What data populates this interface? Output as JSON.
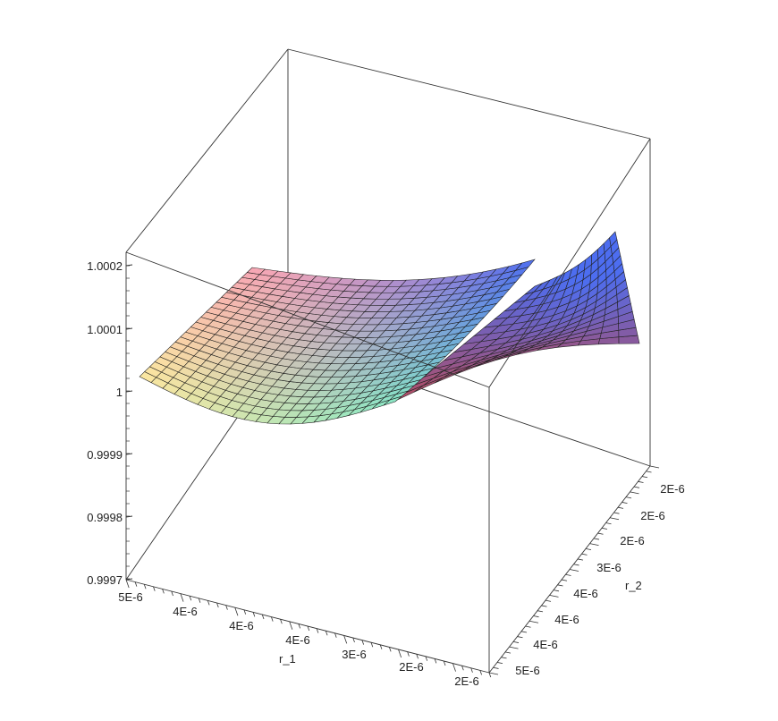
{
  "chart_data": {
    "type": "surface3d",
    "title": "",
    "xlabel": "r_1",
    "ylabel": "r_2",
    "zlabel": "",
    "z_ticks": [
      "1.0002",
      "1.0001",
      "1",
      "0.9999",
      "0.9998",
      "0.9997"
    ],
    "x_ticks": [
      "5E-6",
      "4E-6",
      "4E-6",
      "4E-6",
      "3E-6",
      "2E-6",
      "2E-6"
    ],
    "y_ticks": [
      "2E-6",
      "2E-6",
      "2E-6",
      "3E-6",
      "4E-6",
      "4E-6",
      "4E-6",
      "5E-6"
    ],
    "zlim": [
      0.9997,
      1.0002
    ],
    "grid": {
      "rows": 22,
      "cols": 22
    },
    "surface": {
      "description_rows": "r_1 from 5E-6 to 2E-6",
      "description_cols": "r_2 from 5E-6 to 2E-6",
      "corner_values": {
        "r1_high_r2_high": 1.000007,
        "r1_low_r2_high": 0.99999,
        "r1_high_r2_low": 1.00016,
        "r1_low_r2_low": 1.00015
      }
    },
    "colors": {
      "left_edge": "#fce7a0",
      "back_edge": "#f7a6b4",
      "front_edge": "#8ae8c4",
      "far_corner": "#4d6df0",
      "right_edge": "#b24d63",
      "box": "#333333"
    }
  }
}
